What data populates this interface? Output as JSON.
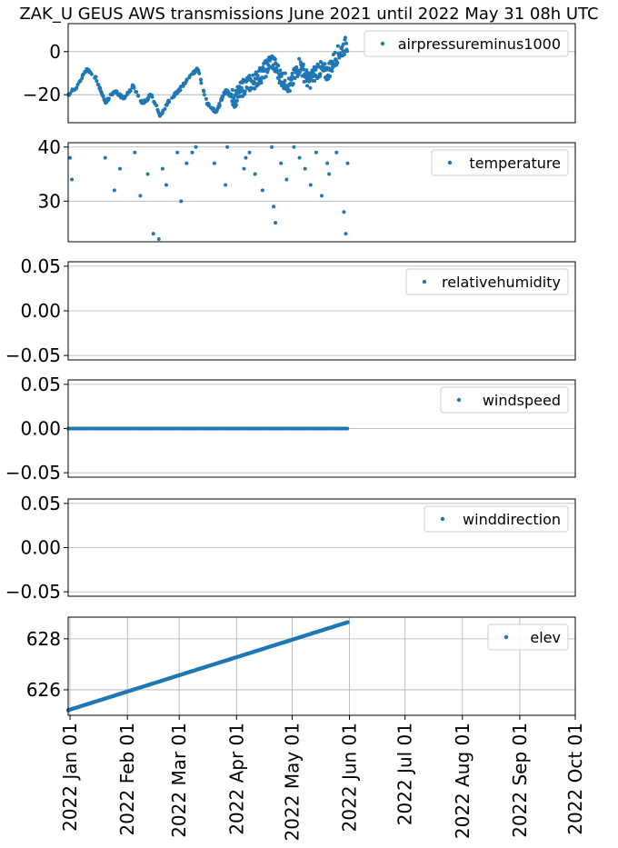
{
  "title": "ZAK_U GEUS AWS transmissions June 2021 until 2022 May 31 08h UTC",
  "colors": {
    "series": "#1f77b4",
    "grid": "#b0b0b0",
    "axes": "#000000",
    "legend_border": "#cccccc"
  },
  "x_axis": {
    "range": [
      "2021-12-31",
      "2022-10-01"
    ],
    "ticks": [
      "2022-01-01",
      "2022-02-01",
      "2022-03-01",
      "2022-04-01",
      "2022-05-01",
      "2022-06-01",
      "2022-07-01",
      "2022-08-01",
      "2022-09-01",
      "2022-10-01"
    ],
    "tick_labels": [
      "2022 Jan 01",
      "2022 Feb 01",
      "2022 Mar 01",
      "2022 Apr 01",
      "2022 May 01",
      "2022 Jun 01",
      "2022 Jul 01",
      "2022 Aug 01",
      "2022 Sep 01",
      "2022 Oct 01"
    ],
    "label_rotation": "vertical",
    "grid_shown_on": "bottom panel"
  },
  "chart_data": [
    {
      "type": "scatter",
      "legend": "airpressureminus1000",
      "legend_position": "top-right",
      "ylim": [
        -33,
        13
      ],
      "yticks": [
        0,
        -20
      ],
      "ytick_labels": [
        "0",
        "−20"
      ],
      "grid": "horizontal",
      "x": [
        "2021-12-31",
        "2022-01-05",
        "2022-01-10",
        "2022-01-15",
        "2022-01-20",
        "2022-01-25",
        "2022-01-30",
        "2022-02-04",
        "2022-02-09",
        "2022-02-14",
        "2022-02-19",
        "2022-02-24",
        "2022-03-01",
        "2022-03-06",
        "2022-03-11",
        "2022-03-16",
        "2022-03-21",
        "2022-03-26",
        "2022-03-31",
        "2022-04-05",
        "2022-04-10",
        "2022-04-15",
        "2022-04-20",
        "2022-04-25",
        "2022-04-30",
        "2022-05-05",
        "2022-05-10",
        "2022-05-15",
        "2022-05-20",
        "2022-05-25",
        "2022-05-31"
      ],
      "values": [
        -20,
        -16,
        -8,
        -12,
        -24,
        -18,
        -22,
        -16,
        -24,
        -20,
        -30,
        -22,
        -18,
        -12,
        -8,
        -24,
        -28,
        -18,
        -22,
        -16,
        -14,
        -10,
        -4,
        -12,
        -16,
        -6,
        -14,
        -8,
        -10,
        -2,
        4
      ]
    },
    {
      "type": "scatter",
      "legend": "temperature",
      "legend_position": "top-right",
      "ylim": [
        22.5,
        40.8
      ],
      "yticks": [
        40,
        30
      ],
      "ytick_labels": [
        "40",
        "30"
      ],
      "grid": "horizontal",
      "x": [
        "2022-01-01",
        "2022-01-02",
        "2022-01-20",
        "2022-01-25",
        "2022-01-28",
        "2022-02-05",
        "2022-02-08",
        "2022-02-12",
        "2022-02-15",
        "2022-02-18",
        "2022-02-20",
        "2022-02-22",
        "2022-02-28",
        "2022-03-02",
        "2022-03-05",
        "2022-03-08",
        "2022-03-10",
        "2022-03-20",
        "2022-03-26",
        "2022-03-27",
        "2022-04-05",
        "2022-04-06",
        "2022-04-08",
        "2022-04-11",
        "2022-04-15",
        "2022-04-20",
        "2022-04-21",
        "2022-04-22",
        "2022-04-25",
        "2022-04-28",
        "2022-05-02",
        "2022-05-05",
        "2022-05-08",
        "2022-05-11",
        "2022-05-14",
        "2022-05-17",
        "2022-05-20",
        "2022-05-21",
        "2022-05-25",
        "2022-05-29",
        "2022-05-30",
        "2022-05-31"
      ],
      "values": [
        38,
        34,
        38,
        32,
        36,
        39,
        31,
        35,
        24,
        23,
        36,
        33,
        39,
        30,
        37,
        39,
        40,
        37,
        33,
        40,
        36,
        38,
        39,
        35,
        32,
        40,
        29,
        26,
        37,
        34,
        40,
        38,
        36,
        33,
        39,
        31,
        37,
        35,
        39,
        28,
        24,
        37
      ]
    },
    {
      "type": "scatter",
      "legend": "relativehumidity",
      "legend_position": "top-right",
      "ylim": [
        -0.055,
        0.055
      ],
      "yticks": [
        0.05,
        0.0,
        -0.05
      ],
      "ytick_labels": [
        "0.05",
        "0.00",
        "−0.05"
      ],
      "grid": "horizontal",
      "x": [],
      "values": []
    },
    {
      "type": "scatter",
      "legend": "windspeed",
      "legend_position": "top-right",
      "ylim": [
        -0.055,
        0.055
      ],
      "yticks": [
        0.05,
        0.0,
        -0.05
      ],
      "ytick_labels": [
        "0.05",
        "0.00",
        "−0.05"
      ],
      "grid": "horizontal",
      "x": [
        "2021-12-31",
        "2022-05-31"
      ],
      "values": [
        0,
        0
      ],
      "note_shape": "dense points along 0"
    },
    {
      "type": "scatter",
      "legend": "winddirection",
      "legend_position": "top-right",
      "ylim": [
        -0.055,
        0.055
      ],
      "yticks": [
        0.05,
        0.0,
        -0.05
      ],
      "ytick_labels": [
        "0.05",
        "0.00",
        "−0.05"
      ],
      "grid": "horizontal",
      "x": [],
      "values": []
    },
    {
      "type": "scatter",
      "legend": "elev",
      "legend_position": "top-right",
      "ylim": [
        625.0,
        628.85
      ],
      "yticks": [
        628,
        626
      ],
      "ytick_labels": [
        "628",
        "626"
      ],
      "grid": "both",
      "x": [
        "2021-12-31",
        "2022-05-31"
      ],
      "values": [
        625.2,
        628.65
      ]
    }
  ]
}
